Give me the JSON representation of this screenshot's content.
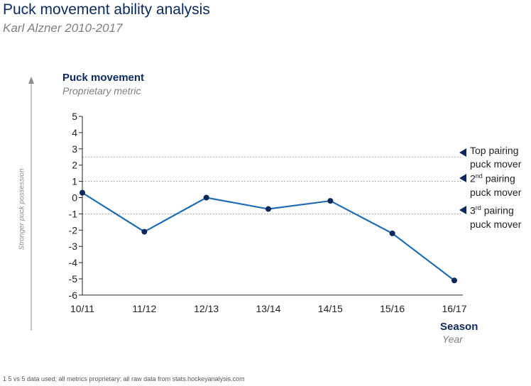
{
  "title": "Puck movement ability analysis",
  "subtitle": "Karl Alzner 2010-2017",
  "footnote": "1 5 vs 5 data used; all metrics proprietary; all raw data from stats.hockeyanalysis.com",
  "side_label": "Stronger puck possession",
  "colors": {
    "line": "#1f6cb0",
    "marker": "#0b2a5b",
    "title": "#0b2a5b",
    "muted": "#7f7f7f"
  },
  "chart_data": {
    "type": "line",
    "title": "Puck movement",
    "ylabel": "Puck movement",
    "ylabel_sub": "Proprietary metric",
    "xlabel": "Season",
    "xlabel_sub": "Year",
    "categories": [
      "10/11",
      "11/12",
      "12/13",
      "13/14",
      "14/15",
      "15/16",
      "16/17"
    ],
    "series": [
      {
        "name": "Karl Alzner",
        "values": [
          0.3,
          -2.1,
          0.0,
          -0.7,
          -0.2,
          -2.2,
          -5.1
        ]
      }
    ],
    "ylim": [
      -6,
      5
    ],
    "yticks": [
      5,
      4,
      3,
      2,
      1,
      0,
      -1,
      -2,
      -3,
      -4,
      -5,
      -6
    ],
    "reference_lines": [
      {
        "value": 2.5,
        "label_line1": "Top pairing",
        "label_sup": "",
        "label_line2": "puck mover"
      },
      {
        "value": 1,
        "label_line1": "2",
        "label_sup": "nd",
        "label_rest": " pairing",
        "label_line2": "puck mover"
      },
      {
        "value": -1,
        "label_line1": "3",
        "label_sup": "rd",
        "label_rest": " pairing",
        "label_line2": "puck mover"
      }
    ]
  }
}
